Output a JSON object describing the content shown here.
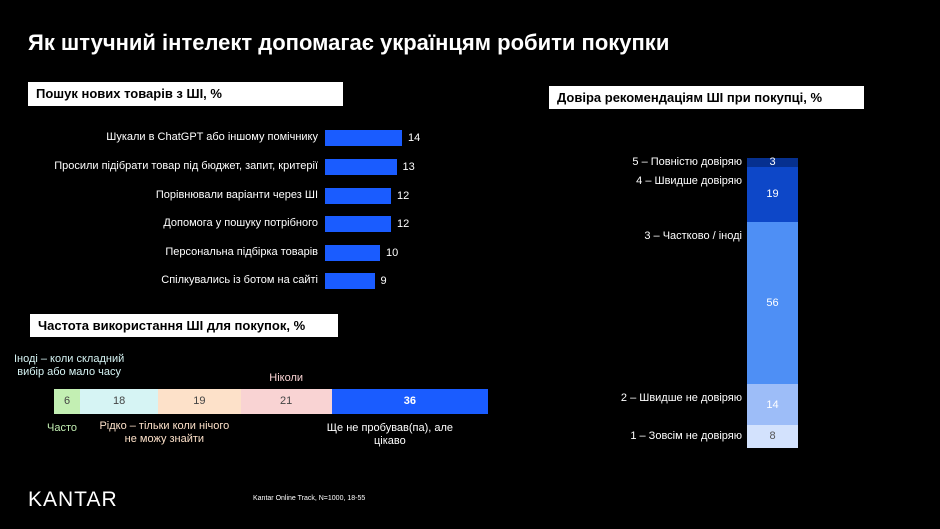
{
  "title": "Як штучний інтелект допомагає українцям робити покупки",
  "logo": "KANTAR",
  "source": "Kantar Online Track, N=1000, 18-55",
  "chart_data": [
    {
      "type": "hbar",
      "title": "Пошук нових товарів з ШІ, %",
      "color": "#1a5cff",
      "categories": [
        "Шукали в ChatGPT або іншому помічнику",
        "Просили підібрати товар під бюджет, запит, критерії",
        "Порівнювали варіанти через ШІ",
        "Допомога у пошуку потрібного",
        "Персональна підбірка товарів",
        "Спілкувались із ботом на сайті"
      ],
      "values": [
        14,
        13,
        12,
        12,
        10,
        9
      ]
    },
    {
      "type": "stacked-hbar",
      "title": "Частота використання ШІ для покупок, %",
      "series": [
        {
          "name": "Часто",
          "color": "#c3efb3",
          "values": [
            6
          ]
        },
        {
          "name": "Іноді – коли складний вибір або мало часу",
          "color": "#d6f4f4",
          "values": [
            18
          ]
        },
        {
          "name": "Рідко – тільки коли нічого не можу знайти",
          "color": "#fde1c9",
          "values": [
            19
          ]
        },
        {
          "name": "Ніколи",
          "color": "#f9d3d3",
          "values": [
            21
          ]
        },
        {
          "name": "Ще не пробував(па), але цікаво",
          "color": "#1a5cff",
          "values": [
            36
          ]
        }
      ]
    },
    {
      "type": "stacked-vbar",
      "title": "Довіра рекомендаціям ШІ при покупці, %",
      "series": [
        {
          "name": "1 – Зовсім не довіряю",
          "color": "#d3e2fd",
          "values": [
            8
          ]
        },
        {
          "name": "2 – Швидше не довіряю",
          "color": "#9dbdf8",
          "values": [
            14
          ]
        },
        {
          "name": "3 – Частково / іноді",
          "color": "#4e8ff5",
          "values": [
            56
          ]
        },
        {
          "name": "4 – Швидше довіряю",
          "color": "#0d47c8",
          "values": [
            19
          ]
        },
        {
          "name": "5 – Повністю довіряю",
          "color": "#06308f",
          "values": [
            3
          ]
        }
      ]
    }
  ]
}
